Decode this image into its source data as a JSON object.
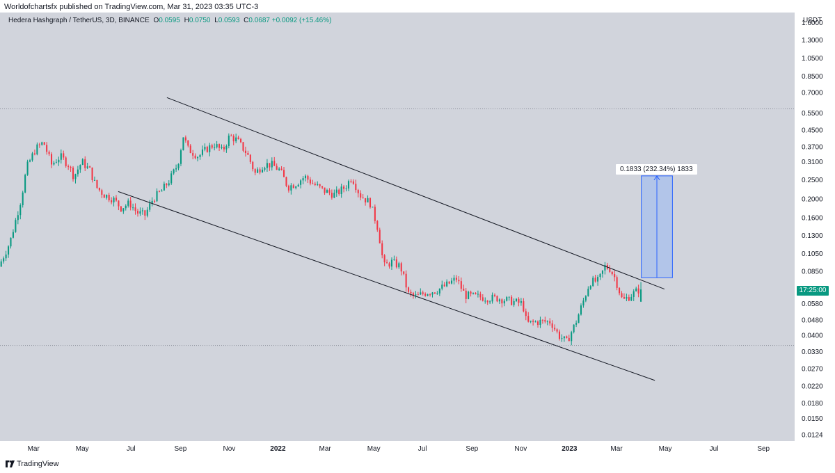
{
  "publisher_line": "Worldofchartsfx published on TradingView.com, Mar 31, 2023 03:35 UTC-3",
  "legend": {
    "symbol": "Hedera Hashgraph / TetherUS, 3D, BINANCE",
    "o_label": "O",
    "o_value": "0.0595",
    "h_label": "H",
    "h_value": "0.0750",
    "l_label": "L",
    "l_value": "0.0593",
    "c_label": "C",
    "c_value": "0.0687",
    "change": "+0.0092 (+15.46%)"
  },
  "currency": "USDT",
  "time_badge": "17:25:00",
  "measure_label": "0.1833 (232.34%) 1833",
  "footer": {
    "brand": "TradingView"
  },
  "colors": {
    "background": "#d1d4dc",
    "up": "#089981",
    "down": "#f23645",
    "trendline": "#131722",
    "measure_fill": "#a7c0ee",
    "measure_line": "#2962ff"
  },
  "chart_data": {
    "type": "candlestick",
    "title": "Hedera Hashgraph / TetherUS, 3D, BINANCE",
    "y_scale": "log",
    "ylim": [
      0.0115,
      1.8
    ],
    "y_ticks": [
      1.6,
      1.3,
      1.05,
      0.85,
      0.7,
      0.55,
      0.45,
      0.37,
      0.31,
      0.25,
      0.2,
      0.16,
      0.13,
      0.105,
      0.085,
      0.068,
      0.058,
      0.048,
      0.04,
      0.033,
      0.027,
      0.022,
      0.018,
      0.015,
      0.0124
    ],
    "y_tick_labels": [
      "1.6000",
      "1.3000",
      "1.0500",
      "0.8500",
      "0.7000",
      "0.5500",
      "0.4500",
      "0.3700",
      "0.3100",
      "0.2500",
      "0.2000",
      "0.1600",
      "0.1300",
      "0.1050",
      "0.0850",
      "0.0680",
      "0.0580",
      "0.0480",
      "0.0400",
      "0.0330",
      "0.0270",
      "0.0220",
      "0.0180",
      "0.0150",
      "0.0124"
    ],
    "x_range": [
      "2021-01-18",
      "2023-10-10"
    ],
    "x_ticks": [
      {
        "date": "2021-03-01",
        "label": "Mar"
      },
      {
        "date": "2021-05-01",
        "label": "May"
      },
      {
        "date": "2021-07-01",
        "label": "Jul"
      },
      {
        "date": "2021-09-01",
        "label": "Sep"
      },
      {
        "date": "2021-11-01",
        "label": "Nov"
      },
      {
        "date": "2022-01-01",
        "label": "2022"
      },
      {
        "date": "2022-03-01",
        "label": "Mar"
      },
      {
        "date": "2022-05-01",
        "label": "May"
      },
      {
        "date": "2022-07-01",
        "label": "Jul"
      },
      {
        "date": "2022-09-01",
        "label": "Sep"
      },
      {
        "date": "2022-11-01",
        "label": "Nov"
      },
      {
        "date": "2023-01-01",
        "label": "2023"
      },
      {
        "date": "2023-03-01",
        "label": "Mar"
      },
      {
        "date": "2023-05-01",
        "label": "May"
      },
      {
        "date": "2023-07-01",
        "label": "Jul"
      },
      {
        "date": "2023-09-01",
        "label": "Sep"
      }
    ],
    "price_path": [
      [
        "2021-01-18",
        0.09
      ],
      [
        "2021-02-01",
        0.12
      ],
      [
        "2021-02-15",
        0.2
      ],
      [
        "2021-02-22",
        0.29
      ],
      [
        "2021-03-05",
        0.36
      ],
      [
        "2021-03-15",
        0.39
      ],
      [
        "2021-03-25",
        0.3
      ],
      [
        "2021-04-05",
        0.33
      ],
      [
        "2021-04-15",
        0.3
      ],
      [
        "2021-04-22",
        0.26
      ],
      [
        "2021-05-02",
        0.31
      ],
      [
        "2021-05-12",
        0.28
      ],
      [
        "2021-05-20",
        0.23
      ],
      [
        "2021-05-30",
        0.21
      ],
      [
        "2021-06-10",
        0.2
      ],
      [
        "2021-06-20",
        0.18
      ],
      [
        "2021-07-01",
        0.19
      ],
      [
        "2021-07-10",
        0.17
      ],
      [
        "2021-07-20",
        0.165
      ],
      [
        "2021-07-30",
        0.2
      ],
      [
        "2021-08-10",
        0.22
      ],
      [
        "2021-08-20",
        0.25
      ],
      [
        "2021-08-30",
        0.3
      ],
      [
        "2021-09-06",
        0.42
      ],
      [
        "2021-09-12",
        0.36
      ],
      [
        "2021-09-25",
        0.33
      ],
      [
        "2021-10-05",
        0.36
      ],
      [
        "2021-10-15",
        0.38
      ],
      [
        "2021-10-25",
        0.35
      ],
      [
        "2021-11-03",
        0.42
      ],
      [
        "2021-11-12",
        0.4
      ],
      [
        "2021-11-25",
        0.34
      ],
      [
        "2021-12-05",
        0.27
      ],
      [
        "2021-12-15",
        0.3
      ],
      [
        "2021-12-25",
        0.3
      ],
      [
        "2022-01-05",
        0.28
      ],
      [
        "2022-01-15",
        0.23
      ],
      [
        "2022-01-25",
        0.24
      ],
      [
        "2022-02-05",
        0.26
      ],
      [
        "2022-02-15",
        0.24
      ],
      [
        "2022-03-01",
        0.22
      ],
      [
        "2022-03-15",
        0.21
      ],
      [
        "2022-03-28",
        0.23
      ],
      [
        "2022-04-05",
        0.26
      ],
      [
        "2022-04-15",
        0.21
      ],
      [
        "2022-04-28",
        0.19
      ],
      [
        "2022-05-08",
        0.14
      ],
      [
        "2022-05-15",
        0.09
      ],
      [
        "2022-05-25",
        0.095
      ],
      [
        "2022-06-05",
        0.09
      ],
      [
        "2022-06-15",
        0.065
      ],
      [
        "2022-06-25",
        0.063
      ],
      [
        "2022-07-05",
        0.066
      ],
      [
        "2022-07-20",
        0.068
      ],
      [
        "2022-08-01",
        0.072
      ],
      [
        "2022-08-14",
        0.078
      ],
      [
        "2022-08-25",
        0.064
      ],
      [
        "2022-09-10",
        0.063
      ],
      [
        "2022-09-25",
        0.062
      ],
      [
        "2022-10-05",
        0.062
      ],
      [
        "2022-10-20",
        0.06
      ],
      [
        "2022-11-05",
        0.058
      ],
      [
        "2022-11-10",
        0.046
      ],
      [
        "2022-11-25",
        0.047
      ],
      [
        "2022-12-10",
        0.047
      ],
      [
        "2022-12-20",
        0.04
      ],
      [
        "2022-12-30",
        0.037
      ],
      [
        "2023-01-10",
        0.046
      ],
      [
        "2023-01-20",
        0.06
      ],
      [
        "2023-01-28",
        0.075
      ],
      [
        "2023-02-08",
        0.076
      ],
      [
        "2023-02-16",
        0.09
      ],
      [
        "2023-02-22",
        0.088
      ],
      [
        "2023-03-01",
        0.078
      ],
      [
        "2023-03-10",
        0.06
      ],
      [
        "2023-03-20",
        0.064
      ],
      [
        "2023-03-31",
        0.0687
      ]
    ],
    "last_candle": {
      "open": 0.0595,
      "high": 0.075,
      "low": 0.0593,
      "close": 0.0687
    },
    "channel_upper": [
      [
        "2021-08-15",
        0.66
      ],
      [
        "2023-04-30",
        0.069
      ]
    ],
    "channel_lower": [
      [
        "2021-06-15",
        0.218
      ],
      [
        "2023-04-18",
        0.0235
      ]
    ],
    "horizontal_levels": [
      0.578,
      0.0355
    ],
    "price_range_measure": {
      "start_date": "2023-04-01",
      "end_date": "2023-05-10",
      "from_price": 0.0789,
      "to_price": 0.2622,
      "change": 0.1833,
      "change_percent": 232.34,
      "label": "0.1833 (232.34%) 1833"
    }
  }
}
